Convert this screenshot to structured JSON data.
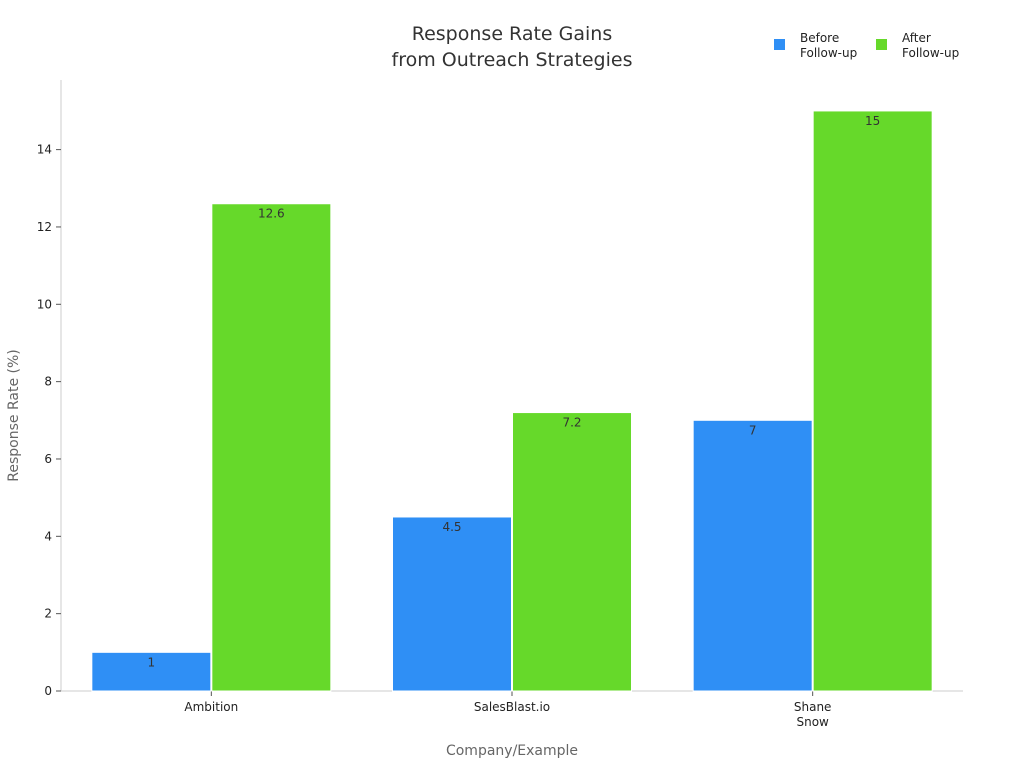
{
  "chart_data": {
    "type": "bar",
    "title_lines": [
      "Response Rate Gains",
      "from Outreach Strategies"
    ],
    "xlabel": "Company/Example",
    "ylabel": "Response Rate (%)",
    "categories": [
      [
        "Ambition"
      ],
      [
        "SalesBlast.io"
      ],
      [
        "Shane",
        "Snow"
      ]
    ],
    "series": [
      {
        "name_lines": [
          "Before",
          "Follow-up"
        ],
        "color": "#2f8ff5",
        "values": [
          1,
          4.5,
          7
        ]
      },
      {
        "name_lines": [
          "After",
          "Follow-up"
        ],
        "color": "#66d92a",
        "values": [
          12.6,
          7.2,
          15
        ]
      }
    ],
    "data_labels": [
      [
        "1",
        "4.5",
        "7"
      ],
      [
        "12.6",
        "7.2",
        "15"
      ]
    ],
    "ylim": [
      0,
      15.8
    ],
    "yticks": [
      0,
      2,
      4,
      6,
      8,
      10,
      12,
      14
    ],
    "grid": false,
    "legend_position": "top-right"
  }
}
